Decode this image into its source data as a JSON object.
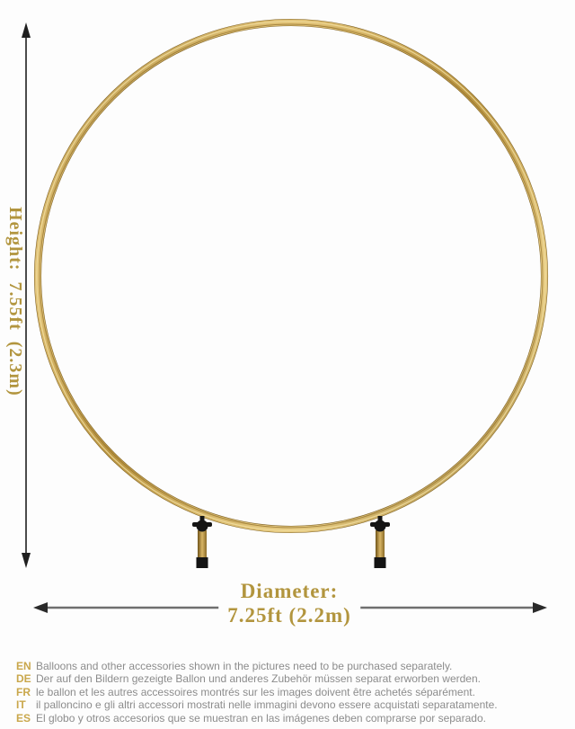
{
  "height_label": {
    "title": "Height:",
    "value": "7.55ft (2.3m)"
  },
  "diameter_label": {
    "title": "Diameter:",
    "value": "7.25ft (2.2m)"
  },
  "colors": {
    "gold_text": "#b2953e",
    "lang_code_gold": "#c9a74b",
    "disclaimer_gray": "#8c8c8c",
    "ring_gold_light": "#e8cc82",
    "ring_gold_dark": "#8f7028"
  },
  "disclaimers": [
    {
      "code": "EN",
      "text": "Balloons and other accessories shown in the pictures need to be purchased separately."
    },
    {
      "code": "DE",
      "text": "Der auf den Bildern gezeigte Ballon und anderes Zubehör müssen separat erworben werden."
    },
    {
      "code": "FR",
      "text": "le ballon et les autres accessoires montrés sur les images doivent être achetés séparément."
    },
    {
      "code": "IT",
      "text": "il palloncino e gli altri accessori mostrati nelle immagini devono essere acquistati separatamente."
    },
    {
      "code": "ES",
      "text": "El globo y otros accesorios que se muestran en las imágenes deben comprarse por separado."
    }
  ]
}
